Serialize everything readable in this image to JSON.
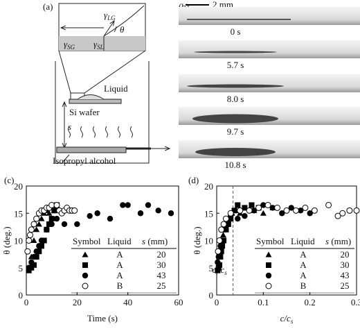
{
  "panel_a": {
    "label": "(a)",
    "gamma_lg": [
      "γ",
      "LG"
    ],
    "theta": "θ",
    "gamma_sg": [
      "γ",
      "SG"
    ],
    "gamma_sl": [
      "γ",
      "SL"
    ],
    "liquid": "Liquid",
    "wafer": "Si wafer",
    "s": "s",
    "ipa": "Isopropyl alcohol"
  },
  "panel_b": {
    "label": "(b)",
    "scale": "2 mm",
    "times": [
      "0 s",
      "5.7 s",
      "8.0 s",
      "9.7 s",
      "10.8 s"
    ]
  },
  "chart_data": [
    {
      "type": "scatter",
      "panel": "(c)",
      "xlabel": [
        "Time (s)"
      ],
      "ylabel": "θ (deg.)",
      "xlim": [
        0,
        60
      ],
      "xticks": [
        0,
        20,
        40,
        60
      ],
      "ylim": [
        0,
        20
      ],
      "yticks": [
        0,
        5,
        10,
        15,
        20
      ],
      "legend_header": [
        "Symbol",
        "Liquid"
      ],
      "legend_s": [
        "s",
        " (mm)"
      ],
      "series": [
        {
          "marker": "triangle",
          "color": "#000",
          "liquid": "A",
          "s": 20,
          "x": [
            1,
            2,
            3,
            4,
            5,
            6,
            7,
            8,
            9,
            10,
            11,
            12
          ],
          "values": [
            5,
            7,
            10,
            12,
            13,
            14,
            15,
            15.5,
            15,
            16,
            15.5,
            16
          ]
        },
        {
          "marker": "square",
          "color": "#000",
          "liquid": "A",
          "s": 30,
          "x": [
            1,
            2,
            3,
            4,
            5,
            6,
            7,
            8,
            9,
            10,
            11,
            12
          ],
          "values": [
            4.5,
            5,
            5.5,
            7,
            8,
            9,
            10,
            12,
            13,
            14,
            15.5,
            16.5
          ]
        },
        {
          "marker": "circle",
          "color": "#000",
          "liquid": "A",
          "s": 43,
          "x": [
            1,
            2,
            3,
            4,
            5,
            6,
            8,
            10,
            12,
            15,
            20,
            25,
            28,
            33,
            38,
            40,
            45,
            48,
            52,
            57
          ],
          "values": [
            5,
            6,
            7,
            8,
            9,
            10,
            12,
            13,
            14,
            13,
            13,
            14.5,
            15,
            14,
            16.5,
            16.5,
            15,
            16.5,
            15.5,
            15
          ]
        },
        {
          "marker": "open-circle",
          "color": "#000",
          "liquid": "B",
          "s": 25,
          "x": [
            0.5,
            1,
            1.5,
            2,
            3,
            4,
            5,
            6,
            7,
            8,
            9,
            10,
            12,
            13,
            14,
            15,
            16,
            17,
            18,
            19
          ],
          "values": [
            8,
            10,
            11,
            12,
            13,
            14,
            15,
            15.5,
            15.5,
            16,
            16,
            16.5,
            16.5,
            15.5,
            15,
            15.5,
            16,
            15.5,
            15.5,
            15.5
          ]
        }
      ]
    },
    {
      "type": "scatter",
      "panel": "(d)",
      "xlabel": [
        "c/c",
        "s"
      ],
      "ylabel": "θ (deg.)",
      "xlim": [
        0,
        0.3
      ],
      "xticks": [
        0,
        0.1,
        0.2,
        0.3
      ],
      "ylim": [
        0,
        20
      ],
      "yticks": [
        0,
        5,
        10,
        15,
        20
      ],
      "vline": 0.035,
      "vline_label": [
        "c",
        "t",
        "/c",
        "s"
      ],
      "legend_header": [
        "Symbol",
        "Liquid"
      ],
      "legend_s": [
        "s",
        " (mm)"
      ],
      "series": [
        {
          "marker": "triangle",
          "color": "#000",
          "liquid": "A",
          "s": 20,
          "x": [
            0.003,
            0.006,
            0.01,
            0.014,
            0.018,
            0.022,
            0.027,
            0.033,
            0.04,
            0.05,
            0.06,
            0.08,
            0.1,
            0.12
          ],
          "values": [
            5,
            7,
            9,
            11,
            12,
            13,
            14,
            15,
            15.5,
            15,
            16,
            15.5,
            15,
            16
          ]
        },
        {
          "marker": "square",
          "color": "#000",
          "liquid": "A",
          "s": 30,
          "x": [
            0.002,
            0.004,
            0.006,
            0.008,
            0.01,
            0.012,
            0.015,
            0.02,
            0.025,
            0.03,
            0.038,
            0.045,
            0.06,
            0.075,
            0.09
          ],
          "values": [
            4.5,
            5,
            5.5,
            7,
            8,
            9,
            10,
            12,
            13,
            14,
            15.5,
            16.5,
            16,
            16.5,
            16
          ]
        },
        {
          "marker": "circle",
          "color": "#000",
          "liquid": "A",
          "s": 43,
          "x": [
            0.002,
            0.004,
            0.006,
            0.008,
            0.01,
            0.015,
            0.02,
            0.03,
            0.045,
            0.06,
            0.08,
            0.1,
            0.12,
            0.14,
            0.16,
            0.18,
            0.2
          ],
          "values": [
            6,
            7,
            8,
            9,
            10,
            12,
            13,
            14.5,
            14,
            14.5,
            15.5,
            16.5,
            16,
            15,
            16,
            15.5,
            15
          ]
        },
        {
          "marker": "open-circle",
          "color": "#000",
          "liquid": "B",
          "s": 25,
          "x": [
            0.003,
            0.006,
            0.01,
            0.015,
            0.02,
            0.03,
            0.05,
            0.07,
            0.09,
            0.11,
            0.13,
            0.15,
            0.17,
            0.19,
            0.21,
            0.24,
            0.26,
            0.27,
            0.285,
            0.3
          ],
          "values": [
            8,
            10,
            12,
            13,
            14,
            15,
            15.5,
            15.5,
            16,
            16.5,
            16,
            15.5,
            15.5,
            16,
            15.5,
            16.5,
            14.5,
            15,
            15.5,
            15.5
          ]
        }
      ]
    }
  ]
}
